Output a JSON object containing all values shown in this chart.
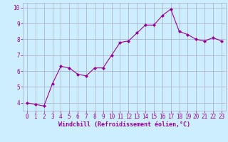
{
  "x": [
    0,
    1,
    2,
    3,
    4,
    5,
    6,
    7,
    8,
    9,
    10,
    11,
    12,
    13,
    14,
    15,
    16,
    17,
    18,
    19,
    20,
    21,
    22,
    23
  ],
  "y": [
    4.0,
    3.9,
    3.8,
    5.2,
    6.3,
    6.2,
    5.8,
    5.7,
    6.2,
    6.2,
    7.0,
    7.8,
    7.9,
    8.4,
    8.9,
    8.9,
    9.5,
    9.9,
    8.5,
    8.3,
    8.0,
    7.9,
    8.1,
    7.9
  ],
  "line_color": "#990099",
  "marker": "D",
  "marker_size": 2,
  "bg_color": "#cceeff",
  "grid_color": "#aaaacc",
  "xlabel": "Windchill (Refroidissement éolien,°C)",
  "xlabel_color": "#990099",
  "tick_color": "#990099",
  "ylim": [
    3.5,
    10.3
  ],
  "xlim": [
    -0.5,
    23.5
  ],
  "yticks": [
    4,
    5,
    6,
    7,
    8,
    9,
    10
  ],
  "xticks": [
    0,
    1,
    2,
    3,
    4,
    5,
    6,
    7,
    8,
    9,
    10,
    11,
    12,
    13,
    14,
    15,
    16,
    17,
    18,
    19,
    20,
    21,
    22,
    23
  ],
  "tick_fontsize": 5.5,
  "xlabel_fontsize": 6.0
}
